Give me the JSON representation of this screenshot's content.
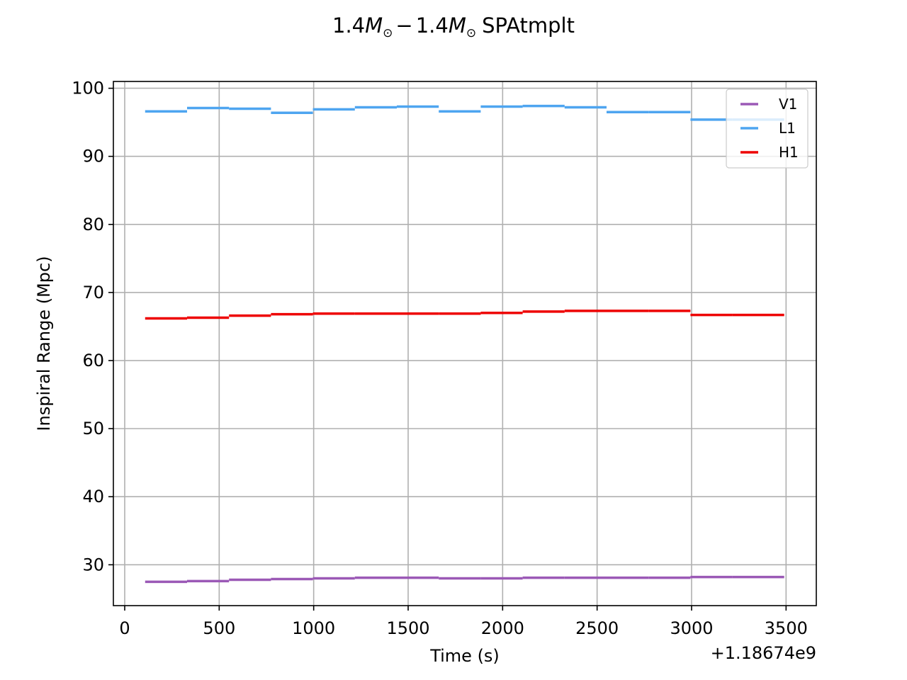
{
  "chart_data": {
    "type": "line",
    "title": {
      "prefix": "1.4",
      "mass1": "M",
      "minus": "−",
      "coef2": "1.4",
      "mass2": "M",
      "sub": "⊙",
      "suffix": "SPAtmplt"
    },
    "xlabel": "Time (s)",
    "ylabel": "Inspiral Range (Mpc)",
    "x_offset_label": "+1.18674e9",
    "xlim": [
      -60,
      3660
    ],
    "ylim": [
      24,
      101
    ],
    "xticks": [
      0,
      500,
      1000,
      1500,
      2000,
      2500,
      3000,
      3500
    ],
    "xtick_labels": [
      "0",
      "500",
      "1000",
      "1500",
      "2000",
      "2500",
      "3000",
      "3500"
    ],
    "yticks": [
      30,
      40,
      50,
      60,
      70,
      80,
      90,
      100
    ],
    "ytick_labels": [
      "30",
      "40",
      "50",
      "60",
      "70",
      "80",
      "90",
      "100"
    ],
    "grid": true,
    "legend_position": "upper right",
    "series": [
      {
        "name": "V1",
        "color": "#9b59b6",
        "segments": [
          [
            108,
            330,
            27.5
          ],
          [
            330,
            552,
            27.6
          ],
          [
            552,
            774,
            27.8
          ],
          [
            774,
            996,
            27.9
          ],
          [
            996,
            1218,
            28.0
          ],
          [
            1218,
            1440,
            28.1
          ],
          [
            1440,
            1662,
            28.1
          ],
          [
            1662,
            1884,
            28.0
          ],
          [
            1884,
            2106,
            28.0
          ],
          [
            2106,
            2328,
            28.1
          ],
          [
            2328,
            2550,
            28.1
          ],
          [
            2550,
            2772,
            28.1
          ],
          [
            2772,
            2994,
            28.1
          ],
          [
            2994,
            3216,
            28.2
          ],
          [
            3216,
            3490,
            28.2
          ]
        ]
      },
      {
        "name": "L1",
        "color": "#4ea5f0",
        "segments": [
          [
            108,
            330,
            96.6
          ],
          [
            330,
            552,
            97.1
          ],
          [
            552,
            774,
            97.0
          ],
          [
            774,
            996,
            96.4
          ],
          [
            996,
            1218,
            96.9
          ],
          [
            1218,
            1440,
            97.2
          ],
          [
            1440,
            1662,
            97.3
          ],
          [
            1662,
            1884,
            96.6
          ],
          [
            1884,
            2106,
            97.3
          ],
          [
            2106,
            2328,
            97.4
          ],
          [
            2328,
            2550,
            97.2
          ],
          [
            2550,
            2772,
            96.5
          ],
          [
            2772,
            2994,
            96.5
          ],
          [
            2994,
            3216,
            95.4
          ],
          [
            3216,
            3490,
            95.4
          ]
        ]
      },
      {
        "name": "H1",
        "color": "#ee0000",
        "segments": [
          [
            108,
            330,
            66.2
          ],
          [
            330,
            552,
            66.3
          ],
          [
            552,
            774,
            66.6
          ],
          [
            774,
            996,
            66.8
          ],
          [
            996,
            1218,
            66.9
          ],
          [
            1218,
            1440,
            66.9
          ],
          [
            1440,
            1662,
            66.9
          ],
          [
            1662,
            1884,
            66.9
          ],
          [
            1884,
            2106,
            67.0
          ],
          [
            2106,
            2328,
            67.2
          ],
          [
            2328,
            2550,
            67.3
          ],
          [
            2550,
            2772,
            67.3
          ],
          [
            2772,
            2994,
            67.3
          ],
          [
            2994,
            3216,
            66.7
          ],
          [
            3216,
            3490,
            66.7
          ]
        ]
      }
    ]
  }
}
